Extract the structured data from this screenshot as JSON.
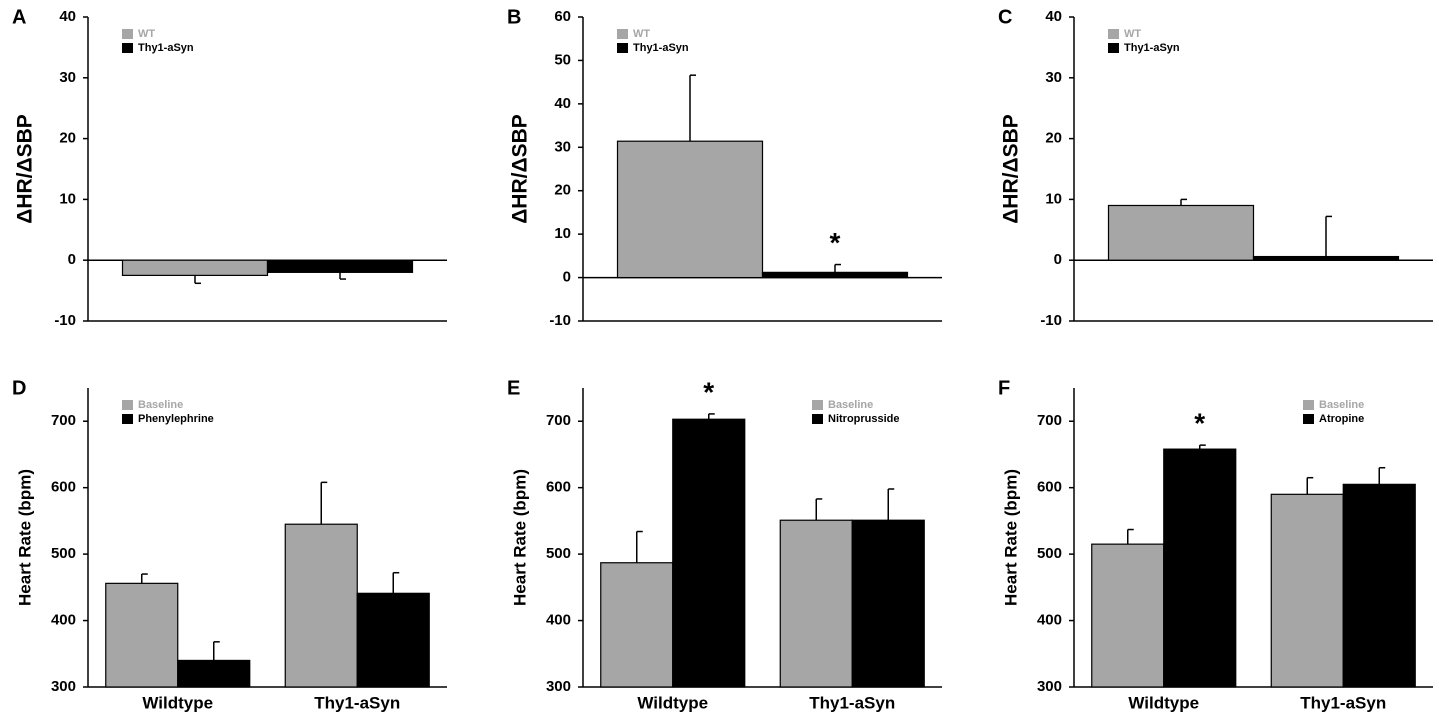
{
  "chart_data": [
    {
      "type": "bar",
      "label": "A",
      "ylabel": "ΔHR/ΔSBP",
      "categories": [
        null
      ],
      "series": [
        {
          "name": "WT",
          "color": "#a6a6a6",
          "values": [
            -2.5
          ],
          "errors": [
            1.3
          ]
        },
        {
          "name": "Thy1-aSyn",
          "color": "#000000",
          "values": [
            -2
          ],
          "errors": [
            1.1
          ]
        }
      ],
      "ylim": [
        -10,
        40
      ],
      "yticks": [
        -10,
        0,
        10,
        20,
        30,
        40
      ],
      "legend": "upper left"
    },
    {
      "type": "bar",
      "label": "B",
      "ylabel": "ΔHR/ΔSBP",
      "categories": [
        null
      ],
      "series": [
        {
          "name": "WT",
          "color": "#a6a6a6",
          "values": [
            31.4
          ],
          "errors": [
            15.2
          ]
        },
        {
          "name": "Thy1-aSyn",
          "color": "#000000",
          "values": [
            1.2
          ],
          "errors": [
            1.8
          ]
        }
      ],
      "ylim": [
        -10,
        60
      ],
      "yticks": [
        -10,
        0,
        10,
        20,
        30,
        40,
        50,
        60
      ],
      "legend": "upper left",
      "annotation": "*"
    },
    {
      "type": "bar",
      "label": "C",
      "ylabel": "ΔHR/ΔSBP",
      "categories": [
        null
      ],
      "series": [
        {
          "name": "WT",
          "color": "#a6a6a6",
          "values": [
            9
          ],
          "errors": [
            1
          ]
        },
        {
          "name": "Thy1-aSyn",
          "color": "#000000",
          "values": [
            0.6
          ],
          "errors": [
            6.6
          ]
        }
      ],
      "ylim": [
        -10,
        40
      ],
      "yticks": [
        -10,
        0,
        10,
        20,
        30,
        40
      ],
      "legend": "upper left"
    },
    {
      "type": "bar",
      "label": "D",
      "ylabel": "Heart Rate (bpm)",
      "categories": [
        "Wildtype",
        "Thy1-aSyn"
      ],
      "series": [
        {
          "name": "Baseline",
          "color": "#a6a6a6",
          "values": [
            456,
            545
          ],
          "errors": [
            14,
            63
          ]
        },
        {
          "name": "Phenylephrine",
          "color": "#000000",
          "values": [
            340,
            441
          ],
          "errors": [
            28,
            31
          ]
        }
      ],
      "ylim": [
        300,
        750
      ],
      "yticks": [
        300,
        400,
        500,
        600,
        700
      ],
      "legend": "upper left"
    },
    {
      "type": "bar",
      "label": "E",
      "ylabel": "Heart Rate (bpm)",
      "categories": [
        "Wildtype",
        "Thy1-aSyn"
      ],
      "series": [
        {
          "name": "Baseline",
          "color": "#a6a6a6",
          "values": [
            487,
            551
          ],
          "errors": [
            47,
            32
          ]
        },
        {
          "name": "Nitroprusside",
          "color": "#000000",
          "values": [
            703,
            551
          ],
          "errors": [
            8,
            47
          ]
        }
      ],
      "ylim": [
        300,
        750
      ],
      "yticks": [
        300,
        400,
        500,
        600,
        700
      ],
      "legend": "upper right",
      "annotation": "*"
    },
    {
      "type": "bar",
      "label": "F",
      "ylabel": "Heart Rate (bpm)",
      "categories": [
        "Wildtype",
        "Thy1-aSyn"
      ],
      "series": [
        {
          "name": "Baseline",
          "color": "#a6a6a6",
          "values": [
            515,
            590
          ],
          "errors": [
            22,
            25
          ]
        },
        {
          "name": "Atropine",
          "color": "#000000",
          "values": [
            658,
            605
          ],
          "errors": [
            6,
            25
          ]
        }
      ],
      "ylim": [
        300,
        750
      ],
      "yticks": [
        300,
        400,
        500,
        600,
        700
      ],
      "legend": "upper right",
      "annotation": "*"
    }
  ]
}
